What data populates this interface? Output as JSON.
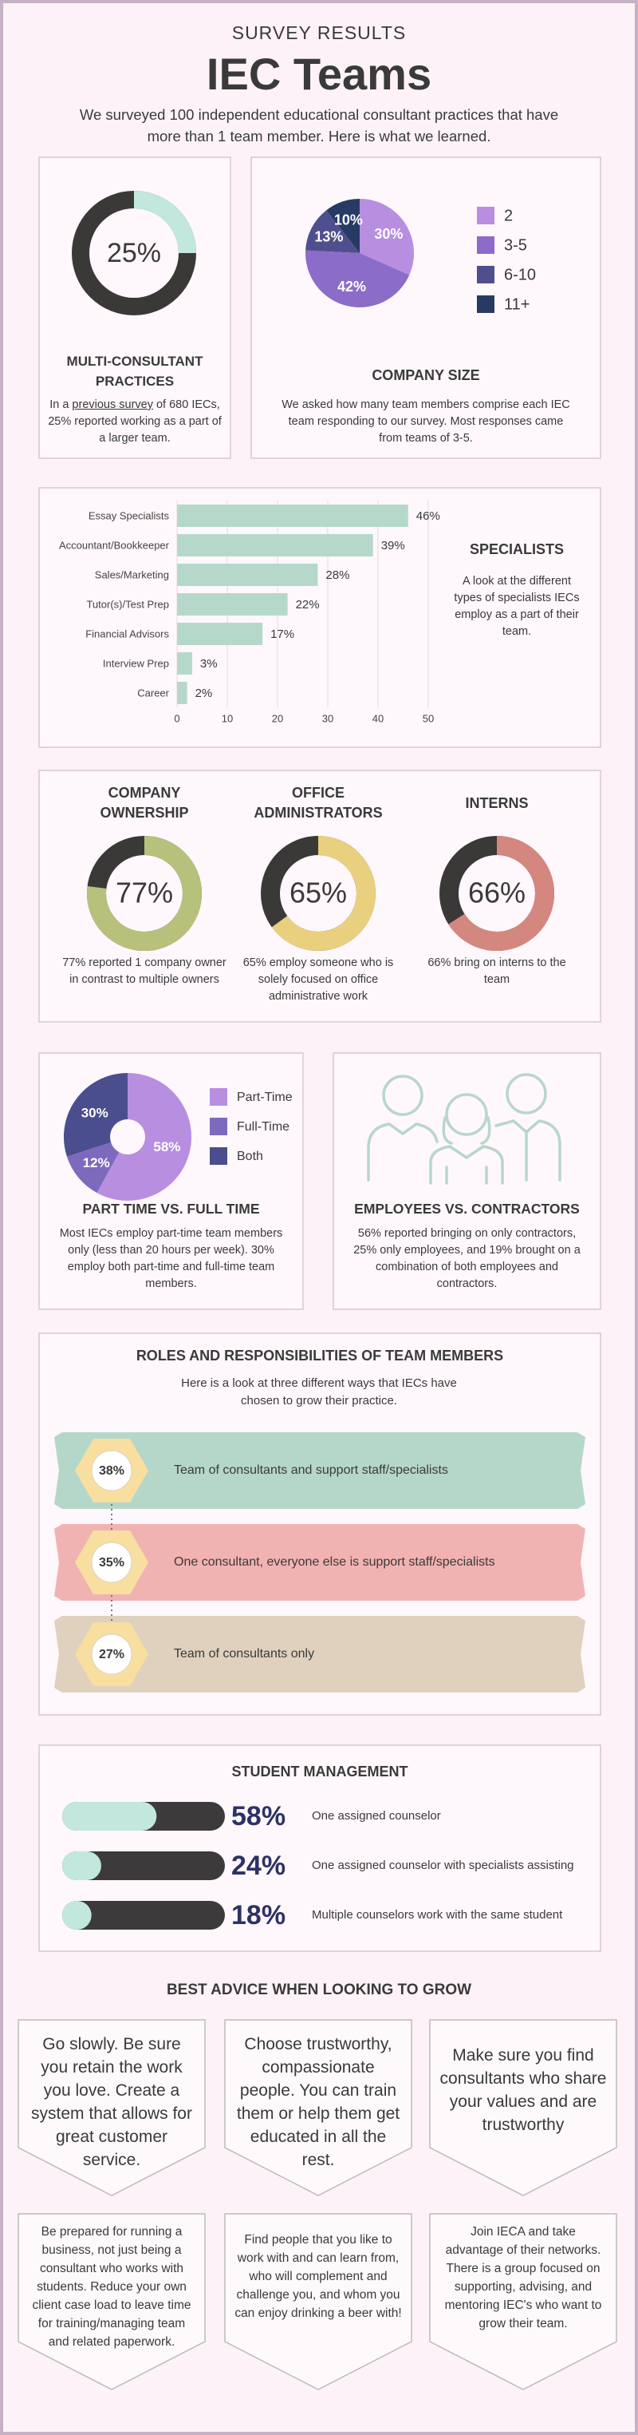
{
  "header": {
    "kicker": "SURVEY RESULTS",
    "title": "IEC Teams",
    "intro": "We surveyed 100 independent educational consultant practices that have more than 1 team member. Here is what we learned."
  },
  "multi_consultant": {
    "chart_data": {
      "type": "donut",
      "values": [
        25
      ],
      "value_labels": [
        "25%"
      ],
      "colors": [
        "#c2e8de"
      ],
      "track_color": "#3b3838"
    },
    "title": "MULTI-CONSULTANT PRACTICES",
    "text_before": "In a ",
    "link": "previous survey",
    "text_after": " of 680 IECs, 25% reported working as a part of a larger team."
  },
  "company_size": {
    "chart_data": {
      "type": "pie",
      "categories": [
        "2",
        "3-5",
        "6-10",
        "11+"
      ],
      "values": [
        30,
        42,
        13,
        10
      ],
      "value_labels": [
        "30%",
        "42%",
        "13%",
        "10%"
      ],
      "colors": [
        "#b78ee0",
        "#8b6cc8",
        "#4f4f8f",
        "#273a64"
      ]
    },
    "title": "COMPANY SIZE",
    "text": "We asked how many team members comprise each IEC team responding to our survey. Most responses came from teams of 3-5."
  },
  "specialists": {
    "chart_data": {
      "type": "bar",
      "horizontal": true,
      "categories": [
        "Essay Specialists",
        "Accountant/Bookkeeper",
        "Sales/Marketing",
        "Tutor(s)/Test Prep",
        "Financial Advisors",
        "Interview Prep",
        "Career"
      ],
      "values": [
        46,
        39,
        28,
        22,
        17,
        3,
        2
      ],
      "value_labels": [
        "46%",
        "39%",
        "28%",
        "22%",
        "17%",
        "3%",
        "2%"
      ],
      "color": "#b6d8cb",
      "xlim": [
        0,
        50
      ],
      "xticks": [
        0,
        10,
        20,
        30,
        40,
        50
      ],
      "grid": true
    },
    "title": "SPECIALISTS",
    "text": "A look at the different types of specialists IECs employ as a part of their team."
  },
  "staffing": [
    {
      "title": "COMPANY OWNERSHIP",
      "chart_data": {
        "type": "donut",
        "values": [
          77
        ],
        "value_labels": [
          "77%"
        ],
        "colors": [
          "#b7c17b"
        ],
        "track_color": "#3b3838"
      },
      "text": "77% reported 1 company owner in contrast to multiple owners"
    },
    {
      "title": "OFFICE ADMINISTRATORS",
      "chart_data": {
        "type": "donut",
        "values": [
          65
        ],
        "value_labels": [
          "65%"
        ],
        "colors": [
          "#e8d07f"
        ],
        "track_color": "#3b3838"
      },
      "text": "65% employ someone who is solely focused on office administrative work"
    },
    {
      "title": "INTERNS",
      "chart_data": {
        "type": "donut",
        "values": [
          66
        ],
        "value_labels": [
          "66%"
        ],
        "colors": [
          "#d4877f"
        ],
        "track_color": "#3b3838"
      },
      "text": "66% bring on interns to the team"
    }
  ],
  "part_time": {
    "chart_data": {
      "type": "donut",
      "categories": [
        "Part-Time",
        "Full-Time",
        "Both"
      ],
      "values": [
        58,
        12,
        30
      ],
      "value_labels": [
        "58%",
        "12%",
        "30%"
      ],
      "colors": [
        "#b78ee0",
        "#7d6abd",
        "#4a4e8e"
      ]
    },
    "title": "PART TIME VS. FULL TIME",
    "text": "Most IECs employ part-time team members only (less than 20 hours per week). 30% employ both part-time and full-time team members."
  },
  "employees": {
    "title": "EMPLOYEES VS. CONTRACTORS",
    "text": "56% reported bringing on only contractors, 25% only employees, and 19% brought on a combination of both employees and contractors."
  },
  "roles": {
    "title": "ROLES AND RESPONSIBILITIES OF TEAM MEMBERS",
    "subtitle": "Here is a look at three different ways that IECs have chosen to grow their practice.",
    "items": [
      {
        "percent": "38%",
        "text": "Team of consultants and support staff/specialists",
        "color": "#b5d7ca"
      },
      {
        "percent": "35%",
        "text": "One consultant, everyone else is support staff/specialists",
        "color": "#f1b3b2"
      },
      {
        "percent": "27%",
        "text": "Team of consultants only",
        "color": "#dfd1bd"
      }
    ]
  },
  "student_management": {
    "title": "STUDENT MANAGEMENT",
    "chart_data": {
      "type": "progress",
      "categories": [
        "One assigned counselor",
        "One assigned counselor with specialists assisting",
        "Multiple counselors work with the same student"
      ],
      "values": [
        58,
        24,
        18
      ],
      "value_labels": [
        "58%",
        "24%",
        "18%"
      ],
      "xlim": [
        0,
        100
      ],
      "color": "#c2e8de",
      "track_color": "#3c3a3a"
    }
  },
  "advice": {
    "title": "BEST ADVICE WHEN LOOKING TO GROW",
    "items": [
      "Go slowly. Be sure you retain the work you love. Create a system that allows for great customer service.",
      "Choose trustworthy, compassionate people. You can train them or help them get educated in all the rest.",
      "Make sure you find consultants who share your values and are trustworthy",
      "Be prepared for running a business, not just being a consultant who works with students. Reduce your own client case load to leave time for training/managing team and related paperwork.",
      "Find people that you like to work with and can learn from, who will complement and challenge you, and whom you can enjoy drinking a beer with!",
      "Join IECA and take advantage of their networks. There is a group focused on supporting, advising, and mentoring IEC's who want to grow their team."
    ]
  }
}
